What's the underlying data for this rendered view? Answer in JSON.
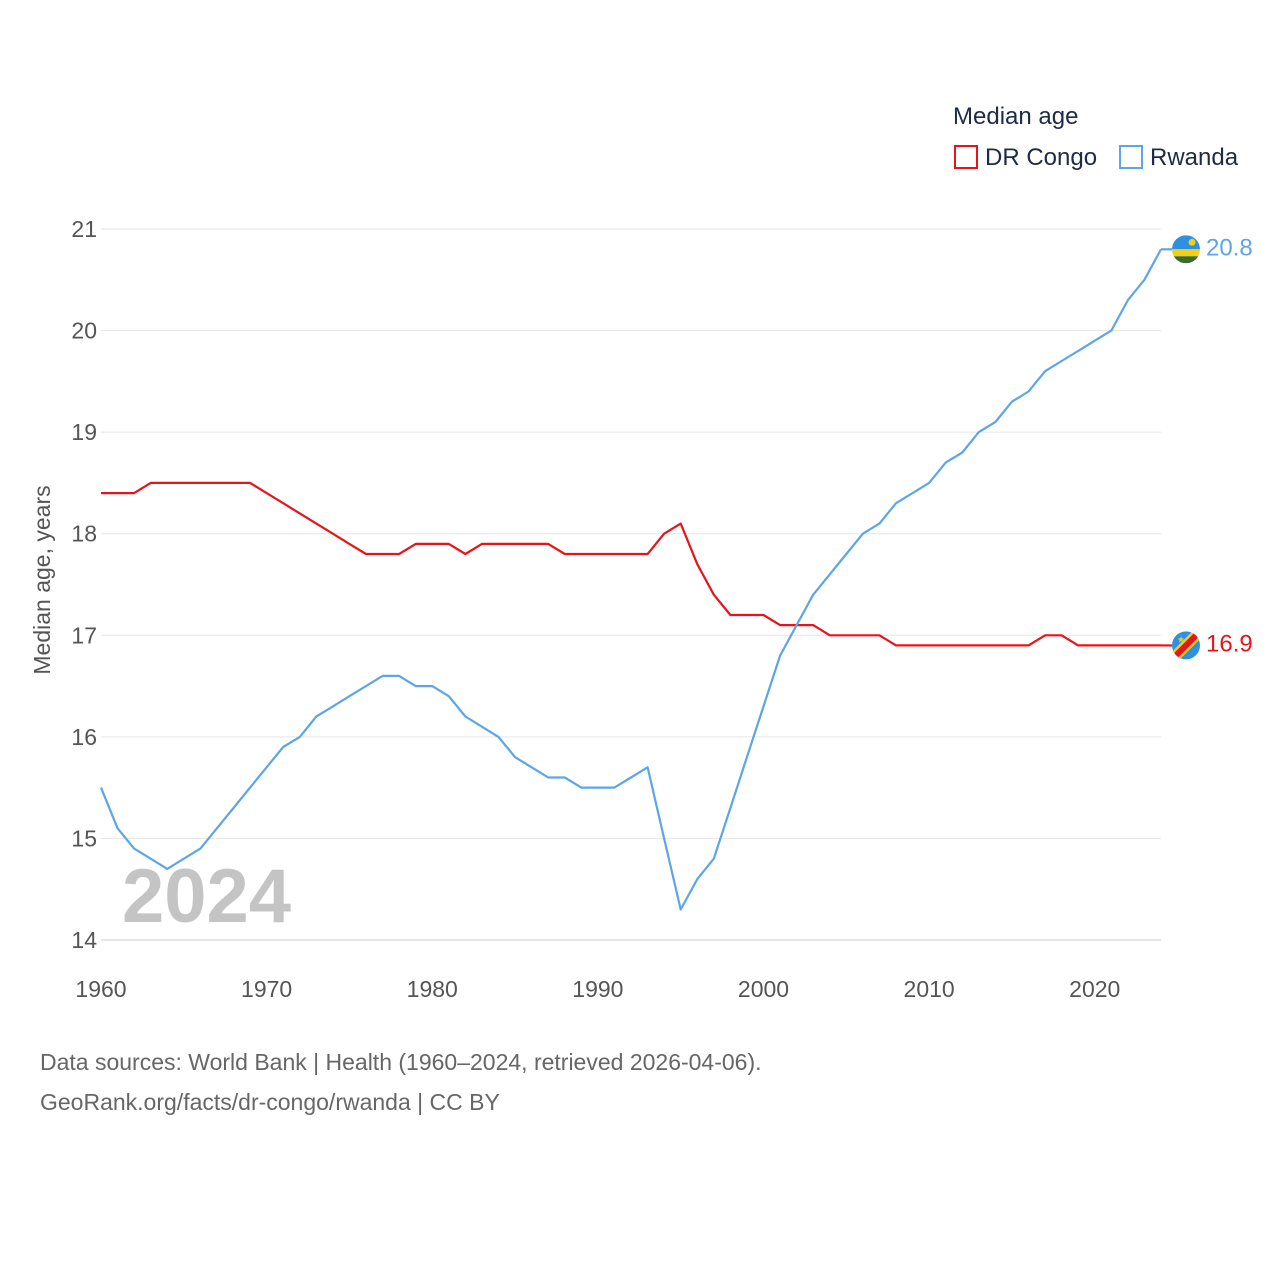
{
  "chart_data": {
    "type": "line",
    "legend_title": "Median age",
    "ylabel": "Median age, years",
    "xlabel": "",
    "xlim": [
      1960,
      2024
    ],
    "ylim": [
      14,
      21
    ],
    "x_ticks": [
      1960,
      1970,
      1980,
      1990,
      2000,
      2010,
      2020
    ],
    "y_ticks": [
      14,
      15,
      16,
      17,
      18,
      19,
      20,
      21
    ],
    "year_label": "2024",
    "legend_position": "top-right",
    "x": [
      1960,
      1961,
      1962,
      1963,
      1964,
      1965,
      1966,
      1967,
      1968,
      1969,
      1970,
      1971,
      1972,
      1973,
      1974,
      1975,
      1976,
      1977,
      1978,
      1979,
      1980,
      1981,
      1982,
      1983,
      1984,
      1985,
      1986,
      1987,
      1988,
      1989,
      1990,
      1991,
      1992,
      1993,
      1994,
      1995,
      1996,
      1997,
      1998,
      1999,
      2000,
      2001,
      2002,
      2003,
      2004,
      2005,
      2006,
      2007,
      2008,
      2009,
      2010,
      2011,
      2012,
      2013,
      2014,
      2015,
      2016,
      2017,
      2018,
      2019,
      2020,
      2021,
      2022,
      2023,
      2024
    ],
    "series": [
      {
        "name": "DR Congo",
        "color": "#e8141c",
        "end_label": "16.9",
        "values": [
          18.4,
          18.4,
          18.4,
          18.5,
          18.5,
          18.5,
          18.5,
          18.5,
          18.5,
          18.5,
          18.4,
          18.3,
          18.2,
          18.1,
          18.0,
          17.9,
          17.8,
          17.8,
          17.8,
          17.9,
          17.9,
          17.9,
          17.8,
          17.9,
          17.9,
          17.9,
          17.9,
          17.9,
          17.8,
          17.8,
          17.8,
          17.8,
          17.8,
          17.8,
          18.0,
          18.1,
          17.7,
          17.4,
          17.2,
          17.2,
          17.2,
          17.1,
          17.1,
          17.1,
          17.0,
          17.0,
          17.0,
          17.0,
          16.9,
          16.9,
          16.9,
          16.9,
          16.9,
          16.9,
          16.9,
          16.9,
          16.9,
          17.0,
          17.0,
          16.9,
          16.9,
          16.9,
          16.9,
          16.9,
          16.9
        ]
      },
      {
        "name": "Rwanda",
        "color": "#5da5e8",
        "end_label": "20.8",
        "values": [
          15.5,
          15.1,
          14.9,
          14.8,
          14.7,
          14.8,
          14.9,
          15.1,
          15.3,
          15.5,
          15.7,
          15.9,
          16.0,
          16.2,
          16.3,
          16.4,
          16.5,
          16.6,
          16.6,
          16.5,
          16.5,
          16.4,
          16.2,
          16.1,
          16.0,
          15.8,
          15.7,
          15.6,
          15.6,
          15.5,
          15.5,
          15.5,
          15.6,
          15.7,
          15.0,
          14.3,
          14.6,
          14.8,
          15.3,
          15.8,
          16.3,
          16.8,
          17.1,
          17.4,
          17.6,
          17.8,
          18.0,
          18.1,
          18.3,
          18.4,
          18.5,
          18.7,
          18.8,
          19.0,
          19.1,
          19.3,
          19.4,
          19.6,
          19.7,
          19.8,
          19.9,
          20.0,
          20.3,
          20.5,
          20.8
        ]
      }
    ]
  },
  "source": {
    "line1": "Data sources: World Bank | Health (1960–2024, retrieved 2026-04-06).",
    "line2": "GeoRank.org/facts/dr-congo/rwanda | CC BY"
  }
}
